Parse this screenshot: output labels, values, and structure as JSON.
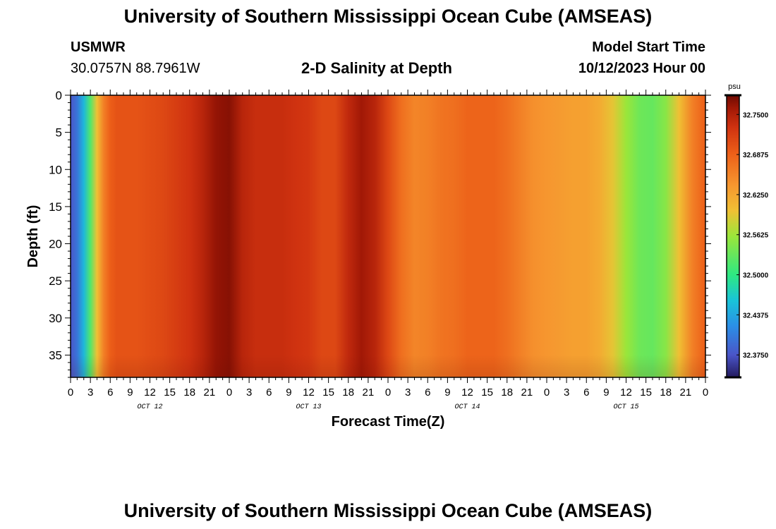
{
  "header": {
    "title": "University of Southern Mississippi Ocean Cube (AMSEAS)",
    "station": "USMWR",
    "coords": "30.0757N  88.7961W",
    "subtitle": "2-D Salinity at Depth",
    "start_label": "Model Start Time",
    "start_value": "10/12/2023 Hour 00"
  },
  "footer": {
    "title": "University of Southern Mississippi Ocean Cube (AMSEAS)"
  },
  "chart_data": {
    "type": "heatmap",
    "title": "2-D Salinity at Depth",
    "xlabel": "Forecast Time(Z)",
    "ylabel": "Depth (ft)",
    "xlim": [
      0,
      96
    ],
    "ylim": [
      38,
      0
    ],
    "x_ticks": [
      0,
      3,
      6,
      9,
      12,
      15,
      18,
      21,
      24,
      27,
      30,
      33,
      36,
      39,
      42,
      45,
      48,
      51,
      54,
      57,
      60,
      63,
      66,
      69,
      72,
      75,
      78,
      81,
      84,
      87,
      90,
      93,
      96
    ],
    "x_tick_labels": [
      "0",
      "3",
      "6",
      "9",
      "12",
      "15",
      "18",
      "21",
      "0",
      "3",
      "6",
      "9",
      "12",
      "15",
      "18",
      "21",
      "0",
      "3",
      "6",
      "9",
      "12",
      "15",
      "18",
      "21",
      "0",
      "3",
      "6",
      "9",
      "12",
      "15",
      "18",
      "21",
      "0"
    ],
    "day_labels": [
      {
        "x": 12,
        "label": "OCT 12"
      },
      {
        "x": 36,
        "label": "OCT 13"
      },
      {
        "x": 60,
        "label": "OCT 14"
      },
      {
        "x": 84,
        "label": "OCT 15"
      }
    ],
    "y_ticks": [
      0,
      5,
      10,
      15,
      20,
      25,
      30,
      35
    ],
    "y_tick_labels": [
      "0",
      "5",
      "10",
      "15",
      "20",
      "25",
      "30",
      "35"
    ],
    "colorbar": {
      "unit": "psu",
      "vmin": 32.34,
      "vmax": 32.78,
      "ticks": [
        32.375,
        32.4375,
        32.5,
        32.5625,
        32.625,
        32.6875,
        32.75
      ],
      "tick_labels": [
        "32.3750",
        "32.4375",
        "32.5000",
        "32.5625",
        "32.6250",
        "32.6875",
        "32.7500"
      ],
      "stops": [
        {
          "v": 32.34,
          "color": "#231a5e"
        },
        {
          "v": 32.375,
          "color": "#4a55c8"
        },
        {
          "v": 32.42,
          "color": "#2b8fe6"
        },
        {
          "v": 32.46,
          "color": "#19c4d8"
        },
        {
          "v": 32.5,
          "color": "#2ee882"
        },
        {
          "v": 32.56,
          "color": "#9be63a"
        },
        {
          "v": 32.6,
          "color": "#f0c034"
        },
        {
          "v": 32.64,
          "color": "#f6962f"
        },
        {
          "v": 32.69,
          "color": "#ec5e18"
        },
        {
          "v": 32.73,
          "color": "#cf3210"
        },
        {
          "v": 32.76,
          "color": "#a11806"
        },
        {
          "v": 32.78,
          "color": "#6e0a02"
        }
      ]
    },
    "series": [
      {
        "name": "salinity_vs_time (depth-uniform)",
        "x": [
          0,
          1,
          2,
          3,
          4,
          5,
          6,
          7,
          8,
          9,
          10,
          12,
          14,
          16,
          18,
          20,
          22,
          24,
          26,
          28,
          30,
          32,
          34,
          36,
          38,
          40,
          42,
          44,
          46,
          48,
          50,
          52,
          54,
          56,
          58,
          60,
          62,
          64,
          66,
          68,
          70,
          72,
          74,
          76,
          78,
          80,
          82,
          84,
          86,
          88,
          90,
          92,
          94,
          96
        ],
        "values": [
          32.375,
          32.4,
          32.45,
          32.52,
          32.6,
          32.66,
          32.69,
          32.7,
          32.7,
          32.7,
          32.7,
          32.705,
          32.71,
          32.72,
          32.73,
          32.745,
          32.765,
          32.77,
          32.745,
          32.735,
          32.735,
          32.735,
          32.73,
          32.725,
          32.71,
          32.71,
          32.74,
          32.76,
          32.745,
          32.71,
          32.675,
          32.655,
          32.66,
          32.67,
          32.675,
          32.685,
          32.685,
          32.685,
          32.675,
          32.66,
          32.645,
          32.64,
          32.635,
          32.63,
          32.63,
          32.62,
          32.595,
          32.56,
          32.535,
          32.53,
          32.55,
          32.6,
          32.66,
          32.69
        ]
      }
    ]
  }
}
